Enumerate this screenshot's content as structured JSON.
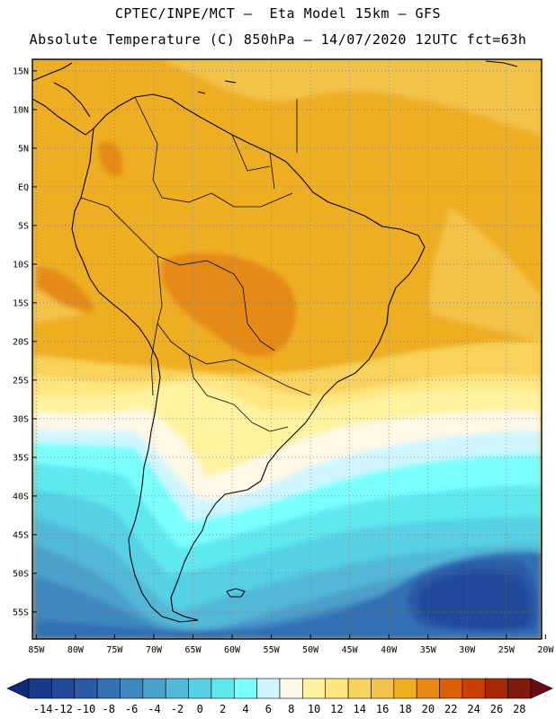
{
  "header": {
    "line1": "CPTEC/INPE/MCT –  Eta Model 15km – GFS",
    "line2": "Absolute Temperature (C) 850hPa – 14/07/2020 12UTC fct=63h"
  },
  "chart_data": {
    "type": "heatmap",
    "title": "Absolute Temperature (C) 850hPa – 14/07/2020 12UTC fct=63h",
    "lat_ticks": [
      "15N",
      "10N",
      "5N",
      "EQ",
      "5S",
      "10S",
      "15S",
      "20S",
      "25S",
      "30S",
      "35S",
      "40S",
      "45S",
      "50S",
      "55S"
    ],
    "lon_ticks": [
      "85W",
      "80W",
      "75W",
      "70W",
      "65W",
      "60W",
      "55W",
      "50W",
      "45W",
      "40W",
      "35W",
      "30W",
      "25W",
      "20W"
    ],
    "lat_range": [
      16.5,
      -58.5
    ],
    "lon_range": [
      -85.5,
      -20.5
    ],
    "colorbar": {
      "labels": [
        "-14",
        "-12",
        "-10",
        "-8",
        "-6",
        "-4",
        "-2",
        "0",
        "2",
        "4",
        "6",
        "8",
        "10",
        "12",
        "14",
        "16",
        "18",
        "20",
        "22",
        "24",
        "26",
        "28"
      ],
      "colors": [
        "#1a3a8a",
        "#22489a",
        "#2a5aa8",
        "#3370b4",
        "#3f88c0",
        "#4ca0cc",
        "#52b8d8",
        "#55d0e4",
        "#5ee8ee",
        "#7affff",
        "#cff6ff",
        "#fff8e6",
        "#fff3a0",
        "#ffe680",
        "#f8d25a",
        "#f2c24a",
        "#eeae22",
        "#e58a14",
        "#db6008",
        "#c84006",
        "#a82806",
        "#801a0a"
      ],
      "under_color": "#102a78",
      "over_color": "#6a0a14"
    },
    "grid": true
  }
}
